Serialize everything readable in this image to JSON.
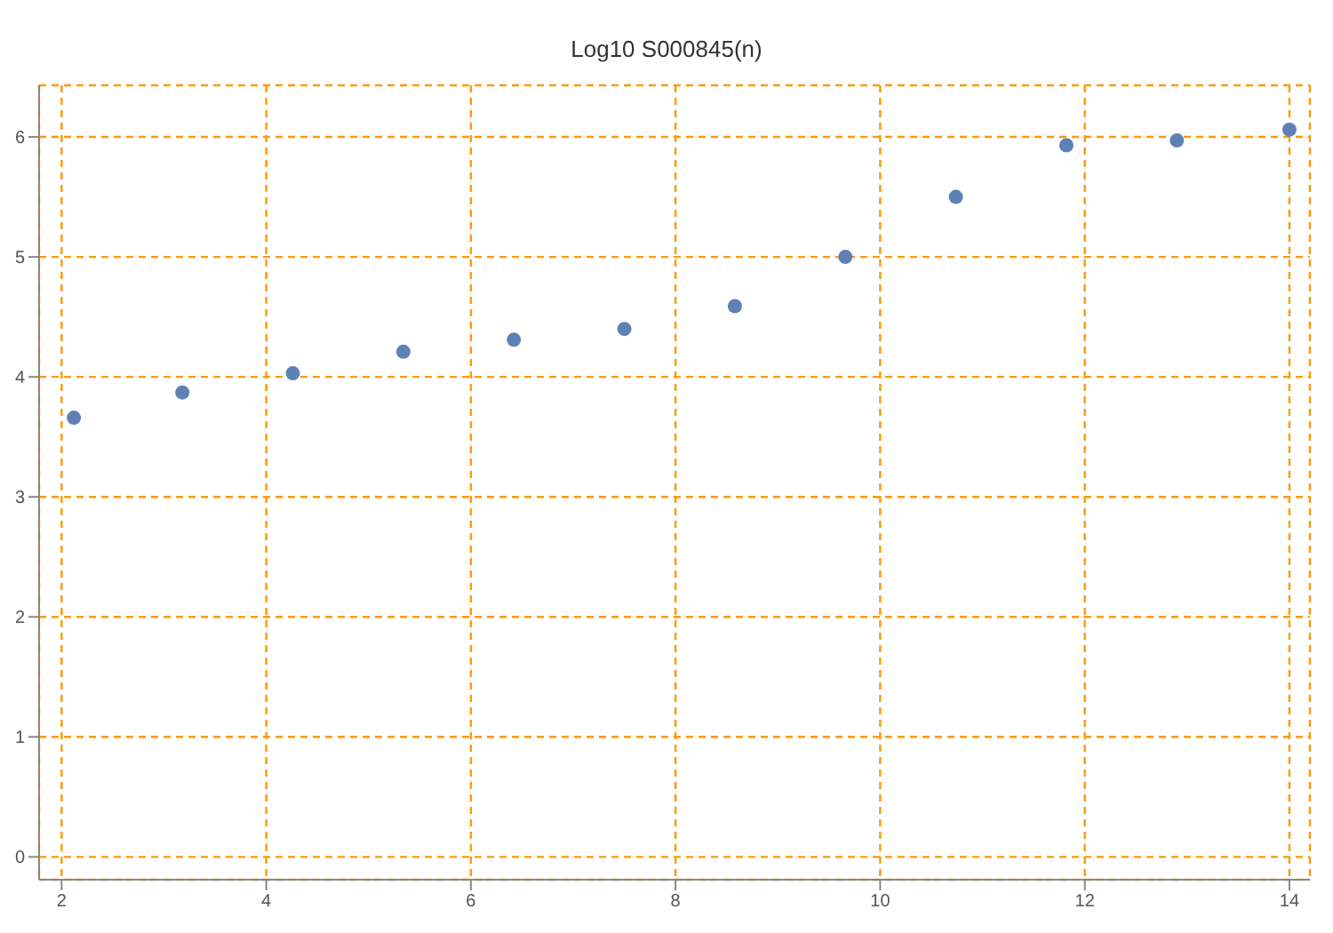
{
  "chart_data": {
    "type": "scatter",
    "title": "Log10 S000845(n)",
    "x": [
      2.12,
      3.18,
      4.26,
      5.34,
      6.42,
      7.5,
      8.58,
      9.66,
      10.74,
      11.82,
      12.9,
      14.0
    ],
    "values": [
      3.66,
      3.87,
      4.03,
      4.21,
      4.31,
      4.4,
      4.59,
      5.0,
      5.5,
      5.93,
      5.97,
      6.06
    ],
    "color": "#5e81b5",
    "marker": "circle",
    "xlim": [
      1.78,
      14.2
    ],
    "xticks": [
      2,
      4,
      6,
      8,
      10,
      12,
      14
    ],
    "ylim": [
      -0.19,
      6.43
    ],
    "yticks": [
      0,
      1,
      2,
      3,
      4,
      5,
      6
    ],
    "grid": true
  }
}
